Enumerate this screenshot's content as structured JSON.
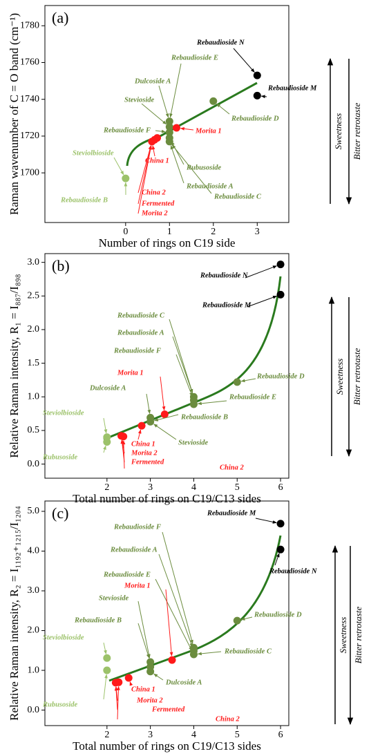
{
  "chart_data": [
    {
      "type": "scatter",
      "title": "(a)",
      "x_label": "Number of rings on C19 side",
      "y_label": "Raman wavenumber of C = O band (cm⁻¹)",
      "xlim": [
        -1.84,
        3.72
      ],
      "ylim": [
        1673,
        1791
      ],
      "xticks": [
        0,
        1,
        2,
        3
      ],
      "yticks": [
        1700,
        1720,
        1740,
        1760,
        1780
      ],
      "side_labels": [
        "Sweetness",
        "Bitter retrotaste"
      ],
      "series": [
        {
          "color": "#9cc26a",
          "x": [
            0
          ],
          "values": [
            1697
          ]
        },
        {
          "color": "#6b8c3e",
          "x": [
            1,
            1,
            1,
            1,
            1,
            2
          ],
          "values": [
            1728,
            1725,
            1722,
            1719,
            1717,
            1739
          ]
        },
        {
          "color": "#ff1a1a",
          "x": [
            0.6,
            0.66,
            0.72,
            1.16
          ],
          "values": [
            1717,
            1718,
            1719,
            1724.5
          ]
        },
        {
          "color": "#000000",
          "x": [
            3,
            3
          ],
          "values": [
            1753,
            1742
          ]
        }
      ],
      "annotations": [
        {
          "text": "Rebaudioside N",
          "color": "#000000"
        },
        {
          "text": "Rebaudioside M",
          "color": "#000000"
        },
        {
          "text": "Rebaudioside E",
          "color": "#6b8c3e"
        },
        {
          "text": "Dulcoside A",
          "color": "#6b8c3e"
        },
        {
          "text": "Stevioside",
          "color": "#6b8c3e"
        },
        {
          "text": "Rebaudioside F",
          "color": "#6b8c3e"
        },
        {
          "text": "Morita 1",
          "color": "#ff1a1a"
        },
        {
          "text": "Rebaudioside D",
          "color": "#6b8c3e"
        },
        {
          "text": "Steviolbioside",
          "color": "#9cc26a"
        },
        {
          "text": "China 1",
          "color": "#ff1a1a"
        },
        {
          "text": "Rubusoside",
          "color": "#6b8c3e"
        },
        {
          "text": "Rebaudioside A",
          "color": "#6b8c3e"
        },
        {
          "text": "Rebaudioside C",
          "color": "#6b8c3e"
        },
        {
          "text": "Rebaudioside B",
          "color": "#9cc26a"
        },
        {
          "text": "China 2",
          "color": "#ff1a1a"
        },
        {
          "text": "Fermented",
          "color": "#ff1a1a"
        },
        {
          "text": "Morita 2",
          "color": "#ff1a1a"
        }
      ]
    },
    {
      "type": "scatter",
      "title": "(b)",
      "x_label": "Total number of rings on C19/C13 sides",
      "y_label": "Relative Raman intensity, R₁ = I₈₈₇/I₈₉₈",
      "xlim": [
        0.57,
        6.19
      ],
      "ylim": [
        -0.21,
        3.13
      ],
      "xticks": [
        2,
        3,
        4,
        5,
        6
      ],
      "yticks": [
        {
          "value": 0,
          "label": "0.0"
        },
        0.5,
        {
          "value": 1,
          "label": "1.0"
        },
        1.5,
        {
          "value": 2,
          "label": "2.0"
        },
        2.5,
        {
          "value": 3,
          "label": "3.0"
        }
      ],
      "side_labels": [
        "Sweetness",
        "Bitter retrotaste"
      ],
      "series": [
        {
          "color": "#9cc26a",
          "x": [
            2,
            2
          ],
          "values": [
            0.4,
            0.33
          ]
        },
        {
          "color": "#6b8c3e",
          "x": [
            3,
            3,
            4,
            4,
            4,
            5
          ],
          "values": [
            0.69,
            0.63,
            1.0,
            0.95,
            0.89,
            1.22
          ]
        },
        {
          "color": "#ff1a1a",
          "x": [
            2.33,
            2.38,
            2.8,
            3.33
          ],
          "values": [
            0.42,
            0.41,
            0.57,
            0.74
          ]
        },
        {
          "color": "#000000",
          "x": [
            6,
            6
          ],
          "values": [
            2.97,
            2.52
          ]
        }
      ],
      "annotations": [
        {
          "text": "Rebaudioside N",
          "color": "#000000"
        },
        {
          "text": "Rebaudioside M",
          "color": "#000000"
        },
        {
          "text": "Rebaudioside C",
          "color": "#6b8c3e"
        },
        {
          "text": "Rebaudioside A",
          "color": "#6b8c3e"
        },
        {
          "text": "Rebaudioside F",
          "color": "#6b8c3e"
        },
        {
          "text": "Morita 1",
          "color": "#ff1a1a"
        },
        {
          "text": "Rebaudioside D",
          "color": "#6b8c3e"
        },
        {
          "text": "Dulcoside A",
          "color": "#6b8c3e"
        },
        {
          "text": "Rebaudioside E",
          "color": "#6b8c3e"
        },
        {
          "text": "Steviolbioside",
          "color": "#9cc26a"
        },
        {
          "text": "Rebaudioside B",
          "color": "#6b8c3e"
        },
        {
          "text": "Stevioside",
          "color": "#6b8c3e"
        },
        {
          "text": "China 1",
          "color": "#ff1a1a"
        },
        {
          "text": "Rubusoside",
          "color": "#9cc26a"
        },
        {
          "text": "Morita 2",
          "color": "#ff1a1a"
        },
        {
          "text": "Fermented",
          "color": "#ff1a1a"
        },
        {
          "text": "China 2",
          "color": "#ff1a1a"
        }
      ]
    },
    {
      "type": "scatter",
      "title": "(c)",
      "x_label": "Total number of rings on C19/C13 sides",
      "y_label": "Relative Raman intensity, R₂ = I₁₁₉₂₊₁₂₁₅/I₁₂₀₄",
      "xlim": [
        0.57,
        6.19
      ],
      "ylim": [
        -0.39,
        5.26
      ],
      "xticks": [
        2,
        3,
        4,
        5,
        6
      ],
      "yticks": [
        {
          "value": 0,
          "label": "0.0"
        },
        {
          "value": 1,
          "label": "1.0"
        },
        {
          "value": 2,
          "label": "2.0"
        },
        {
          "value": 3,
          "label": "3.0"
        },
        {
          "value": 4,
          "label": "4.0"
        },
        {
          "value": 5,
          "label": "5.0"
        }
      ],
      "side_labels": [
        "Sweetness",
        "Bitter retrotaste"
      ],
      "series": [
        {
          "color": "#9cc26a",
          "x": [
            2,
            2
          ],
          "values": [
            1.31,
            1.0
          ]
        },
        {
          "color": "#6b8c3e",
          "x": [
            3,
            3,
            3,
            4,
            4,
            4,
            5
          ],
          "values": [
            1.21,
            1.09,
            0.97,
            1.57,
            1.49,
            1.4,
            2.25
          ]
        },
        {
          "color": "#ff1a1a",
          "x": [
            2.2,
            2.27,
            2.5,
            3.5
          ],
          "values": [
            0.69,
            0.7,
            0.81,
            1.26
          ]
        },
        {
          "color": "#000000",
          "x": [
            6,
            6
          ],
          "values": [
            4.69,
            4.04
          ]
        }
      ],
      "annotations": [
        {
          "text": "Rebaudioside M",
          "color": "#000000"
        },
        {
          "text": "Rebaudioside N",
          "color": "#000000"
        },
        {
          "text": "Rebaudioside F",
          "color": "#6b8c3e"
        },
        {
          "text": "Rebaudioside A",
          "color": "#6b8c3e"
        },
        {
          "text": "Rebaudioside E",
          "color": "#6b8c3e"
        },
        {
          "text": "Rebaudioside D",
          "color": "#6b8c3e"
        },
        {
          "text": "Morita 1",
          "color": "#ff1a1a"
        },
        {
          "text": "Stevioside",
          "color": "#6b8c3e"
        },
        {
          "text": "Rebaudioside B",
          "color": "#6b8c3e"
        },
        {
          "text": "Rebaudioside C",
          "color": "#6b8c3e"
        },
        {
          "text": "Steviolbioside",
          "color": "#9cc26a"
        },
        {
          "text": "Dulcoside A",
          "color": "#6b8c3e"
        },
        {
          "text": "China 1",
          "color": "#ff1a1a"
        },
        {
          "text": "Rubusoside",
          "color": "#9cc26a"
        },
        {
          "text": "Morita 2",
          "color": "#ff1a1a"
        },
        {
          "text": "Fermented",
          "color": "#ff1a1a"
        },
        {
          "text": "China 2",
          "color": "#ff1a1a"
        }
      ]
    }
  ]
}
